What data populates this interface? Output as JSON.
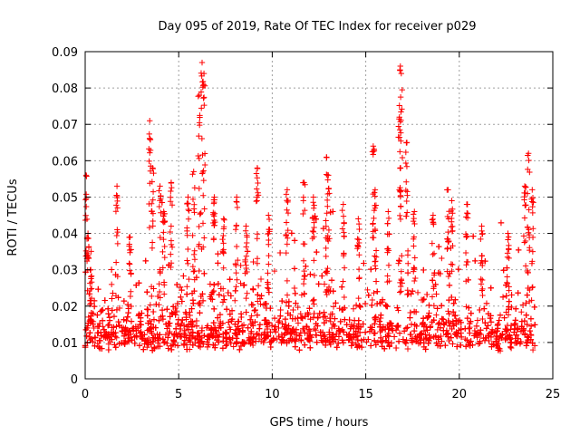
{
  "chart_data": {
    "type": "scatter",
    "title": "Day 095 of 2019, Rate Of TEC Index for receiver p029",
    "xlabel": "GPS time / hours",
    "ylabel": "ROTI / TECUs",
    "xlim": [
      0,
      25
    ],
    "ylim": [
      0,
      0.09
    ],
    "xticks": [
      0,
      5,
      10,
      15,
      20,
      25
    ],
    "xtick_labels": [
      "0",
      "5",
      "10",
      "15",
      "20",
      "25"
    ],
    "yticks": [
      0,
      0.01,
      0.02,
      0.03,
      0.04,
      0.05,
      0.06,
      0.07,
      0.08,
      0.09
    ],
    "ytick_labels": [
      "0",
      "0.01",
      "0.02",
      "0.03",
      "0.04",
      "0.05",
      "0.06",
      "0.07",
      "0.08",
      "0.09"
    ],
    "grid": true,
    "marker": "+",
    "color": "#ff0000",
    "series": [
      {
        "name": "ROTI",
        "x": [
          0.02,
          0.05,
          0.1,
          0.12,
          0.15,
          0.25,
          0.3,
          0.4,
          1.7,
          1.75,
          2.3,
          2.4,
          3.3,
          3.4,
          3.45,
          3.5,
          3.6,
          3.7,
          4.0,
          4.2,
          4.6,
          4.9,
          5.2,
          5.5,
          5.6,
          5.8,
          6.1,
          6.2,
          6.25,
          6.3,
          6.35,
          6.4,
          6.5,
          6.9,
          7.4,
          7.7,
          8.1,
          8.6,
          9.0,
          9.2,
          9.3,
          9.8,
          10.2,
          10.8,
          11.2,
          11.7,
          12.0,
          12.2,
          12.8,
          12.9,
          13.0,
          13.4,
          13.8,
          14.6,
          15.3,
          15.4,
          15.45,
          15.5,
          15.7,
          16.2,
          16.6,
          16.8,
          16.85,
          16.9,
          16.95,
          17.2,
          17.6,
          18.1,
          18.6,
          19.1,
          19.4,
          19.5,
          19.6,
          19.9,
          20.4,
          21.2,
          22.0,
          22.6,
          23.2,
          23.5,
          23.6,
          23.7,
          23.9,
          24.0
        ]
      }
    ]
  }
}
